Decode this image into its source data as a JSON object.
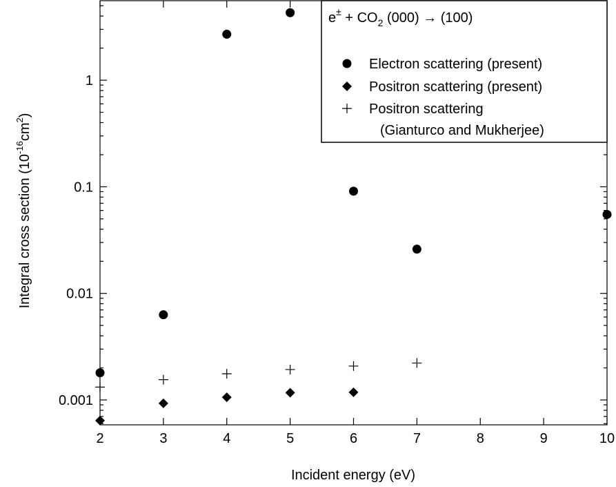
{
  "chart_data": {
    "type": "scatter",
    "title": "",
    "xlabel": "Incident energy (eV)",
    "ylabel": {
      "main": "Integral cross section (10",
      "exp": "-16",
      "unit": "cm",
      "unit_exp": "2",
      "close": ")"
    },
    "x_scale": "linear",
    "y_scale": "log",
    "xlim": [
      2,
      10
    ],
    "ylim": [
      0.0006,
      5
    ],
    "x_ticks": [
      "2",
      "3",
      "4",
      "5",
      "6",
      "7",
      "8",
      "9",
      "10"
    ],
    "y_ticks": [
      {
        "value": 0.001,
        "label": "0.001"
      },
      {
        "value": 0.01,
        "label": "0.01"
      },
      {
        "value": 0.1,
        "label": "0.1"
      },
      {
        "value": 1,
        "label": "1"
      }
    ],
    "grid": false,
    "legend_position": "top-right",
    "legend_title": {
      "e": "e",
      "pm": "±",
      "plus_co": " + CO",
      "sub2": "2",
      "rest": " (000)  →  (100)"
    },
    "series": [
      {
        "name": "Electron scattering (present)",
        "marker": "circle",
        "x": [
          2,
          3,
          4,
          5,
          6,
          7,
          10
        ],
        "y": [
          0.0018,
          0.0063,
          2.7,
          4.3,
          0.091,
          0.026,
          0.055
        ]
      },
      {
        "name": "Positron scattering (present)",
        "marker": "diamond",
        "x": [
          2,
          3,
          4,
          5,
          6
        ],
        "y": [
          0.00064,
          0.00093,
          0.00106,
          0.00117,
          0.00118
        ]
      },
      {
        "name": "Positron scattering",
        "name_line2": "(Gianturco and Mukherjee)",
        "marker": "plus",
        "x": [
          2,
          3,
          4,
          5,
          6,
          7
        ],
        "y": [
          0.00132,
          0.00155,
          0.00176,
          0.00193,
          0.00208,
          0.00222
        ]
      }
    ]
  }
}
